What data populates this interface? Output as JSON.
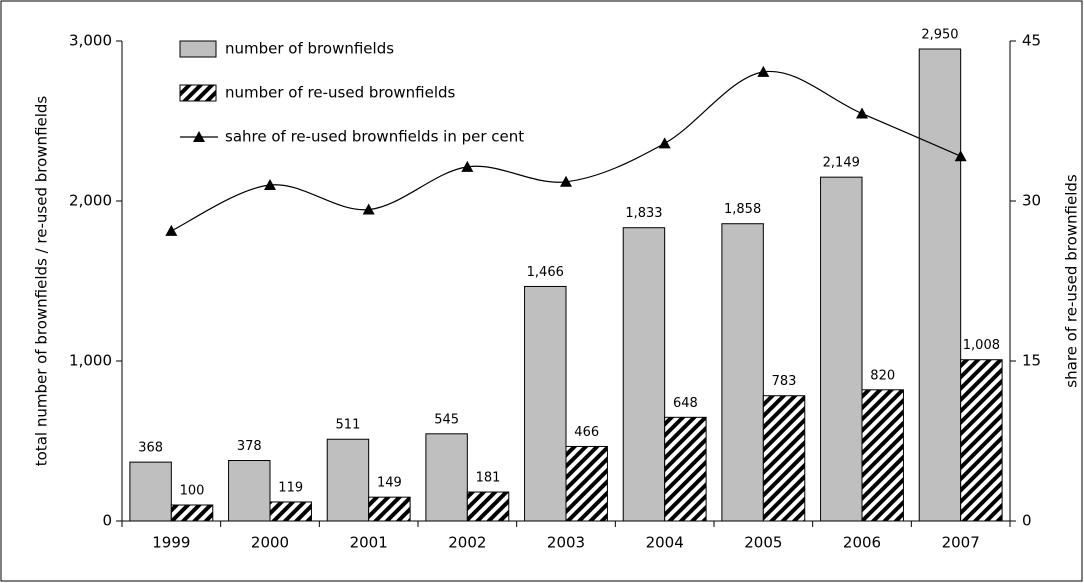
{
  "chart_data": {
    "type": "bar",
    "categories": [
      "1999",
      "2000",
      "2001",
      "2002",
      "2003",
      "2004",
      "2005",
      "2006",
      "2007"
    ],
    "series": [
      {
        "name": "number of brownfields",
        "color": "#bfbfbf",
        "type": "bar",
        "values": [
          368,
          378,
          511,
          545,
          1466,
          1833,
          1858,
          2149,
          2950
        ],
        "value_labels": [
          "368",
          "378",
          "511",
          "545",
          "1,466",
          "1,833",
          "1,858",
          "2,149",
          "2,950"
        ]
      },
      {
        "name": "number of re-used brownfields",
        "color": "#000000",
        "type": "bar",
        "pattern": "diagonal-hatch",
        "values": [
          100,
          119,
          149,
          181,
          466,
          648,
          783,
          820,
          1008
        ],
        "value_labels": [
          "100",
          "119",
          "149",
          "181",
          "466",
          "648",
          "783",
          "820",
          "1,008"
        ]
      },
      {
        "name": "sahre of re-used brownfields in per cent",
        "color": "#000000",
        "type": "line",
        "marker": "triangle",
        "axis": "y2",
        "values": [
          27.2,
          31.5,
          29.2,
          33.2,
          31.8,
          35.4,
          42.1,
          38.2,
          34.2
        ]
      }
    ],
    "ylabel": "total number of brownfields / re-used brownfields",
    "y2label": "share of re-used brownfields",
    "ylim": [
      0,
      3000
    ],
    "yticks": [
      0,
      {
        "value": 1000,
        "label": "1,000"
      },
      {
        "value": 2000,
        "label": "2,000"
      },
      {
        "value": 3000,
        "label": "3,000"
      }
    ],
    "y2lim": [
      0,
      45
    ],
    "y2ticks": [
      0,
      15,
      30,
      45
    ],
    "legend": "upper left"
  }
}
